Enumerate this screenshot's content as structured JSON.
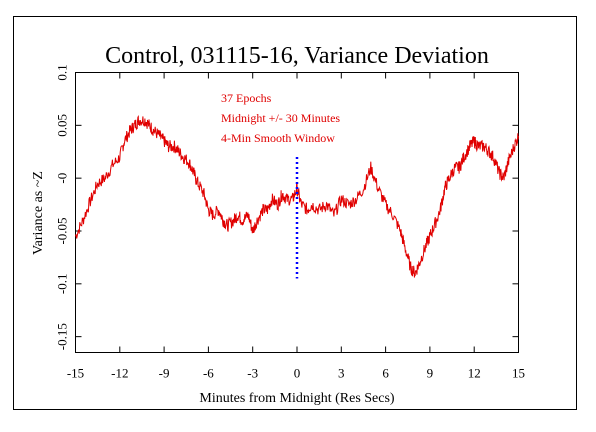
{
  "chart_data": {
    "type": "line",
    "title": "Control, 031115-16, Variance Deviation",
    "xlabel": "Minutes from Midnight (Res Secs)",
    "ylabel": "Variance as ~Z",
    "xlim": [
      -15,
      15
    ],
    "ylim": [
      -0.165,
      0.1
    ],
    "x_ticks": [
      -15,
      -12,
      -9,
      -6,
      -3,
      0,
      3,
      6,
      9,
      12,
      15
    ],
    "x_tick_labels": [
      "-15",
      "-12",
      "-9",
      "-6",
      "-3",
      "0",
      "3",
      "6",
      "9",
      "12",
      "15"
    ],
    "y_ticks": [
      0.1,
      0.05,
      0,
      -0.05,
      -0.1,
      -0.15
    ],
    "y_tick_labels": [
      "0.1",
      "0.05",
      "-0",
      "-0.05",
      "-0.1",
      "-0.15"
    ],
    "grid": false,
    "annotations": [
      "37 Epochs",
      "Midnight +/- 30 Minutes",
      "4-Min Smooth Window"
    ],
    "series": [
      {
        "color": "#e00000",
        "x": [
          -15,
          -14.5,
          -14,
          -13.5,
          -13,
          -12.5,
          -12,
          -11.7,
          -11.3,
          -11,
          -10.7,
          -10.3,
          -10,
          -9.7,
          -9.3,
          -9,
          -8.7,
          -8.3,
          -8,
          -7.7,
          -7.3,
          -7,
          -6.7,
          -6.3,
          -6,
          -5.7,
          -5.3,
          -5,
          -4.7,
          -4.3,
          -4,
          -3.7,
          -3.3,
          -3,
          -2.7,
          -2.3,
          -2,
          -1.7,
          -1.3,
          -1,
          -0.7,
          -0.3,
          0,
          0.3,
          0.7,
          1,
          1.5,
          2,
          2.5,
          3,
          3.5,
          4,
          4.5,
          5,
          5.5,
          6,
          6.5,
          7,
          7.3,
          7.7,
          8,
          8.3,
          8.7,
          9,
          9.3,
          9.7,
          10,
          10.3,
          10.7,
          11,
          11.3,
          11.7,
          12,
          12.3,
          12.7,
          13,
          13.3,
          13.7,
          14,
          14.3,
          14.7,
          15
        ],
        "y": [
          -0.055,
          -0.04,
          -0.022,
          -0.005,
          0.0,
          0.012,
          0.02,
          0.035,
          0.045,
          0.05,
          0.055,
          0.055,
          0.05,
          0.045,
          0.04,
          0.035,
          0.03,
          0.03,
          0.025,
          0.02,
          0.015,
          0.005,
          -0.005,
          -0.015,
          -0.03,
          -0.035,
          -0.03,
          -0.04,
          -0.045,
          -0.04,
          -0.035,
          -0.04,
          -0.035,
          -0.05,
          -0.04,
          -0.03,
          -0.03,
          -0.02,
          -0.025,
          -0.015,
          -0.02,
          -0.02,
          -0.01,
          -0.025,
          -0.03,
          -0.025,
          -0.03,
          -0.025,
          -0.035,
          -0.02,
          -0.025,
          -0.02,
          -0.01,
          0.01,
          -0.01,
          -0.025,
          -0.035,
          -0.05,
          -0.065,
          -0.085,
          -0.09,
          -0.08,
          -0.065,
          -0.055,
          -0.045,
          -0.03,
          -0.01,
          0.0,
          0.01,
          0.01,
          0.02,
          0.03,
          0.035,
          0.03,
          0.03,
          0.025,
          0.02,
          0.005,
          0.0,
          0.015,
          0.03,
          0.04
        ]
      }
    ],
    "reference_line": {
      "x": 0,
      "y_range": [
        -0.095,
        0.02
      ],
      "color": "#0000ff",
      "style": "dotted"
    }
  }
}
